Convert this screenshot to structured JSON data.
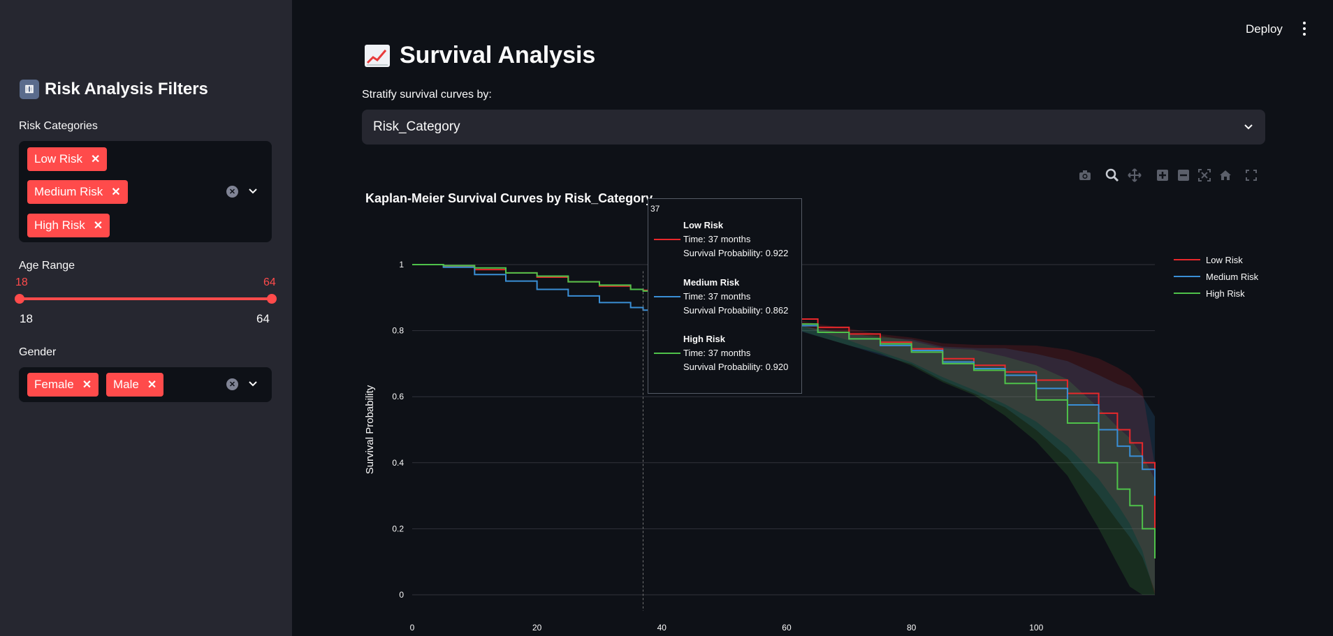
{
  "sidebar": {
    "title": "Risk Analysis Filters",
    "risk_label": "Risk Categories",
    "risk_tags": [
      "Low Risk",
      "Medium Risk",
      "High Risk"
    ],
    "age_label": "Age Range",
    "age_low": "18",
    "age_high": "64",
    "age_min": "18",
    "age_max": "64",
    "gender_label": "Gender",
    "gender_tags": [
      "Female",
      "Male"
    ]
  },
  "header": {
    "deploy": "Deploy"
  },
  "main": {
    "title": "Survival Analysis",
    "strat_label": "Stratify survival curves by:",
    "strat_value": "Risk_Category"
  },
  "colors": {
    "accent": "#ff4b4b",
    "low": "#e8282b",
    "medium": "#3a8fd6",
    "high": "#4fc24a"
  },
  "tooltip": {
    "x": "37",
    "entries": [
      {
        "name": "Low Risk",
        "time": "Time: 37 months",
        "prob": "Survival Probability: 0.922"
      },
      {
        "name": "Medium Risk",
        "time": "Time: 37 months",
        "prob": "Survival Probability: 0.862"
      },
      {
        "name": "High Risk",
        "time": "Time: 37 months",
        "prob": "Survival Probability: 0.920"
      }
    ]
  },
  "chart_data": {
    "type": "line",
    "title": "Kaplan-Meier Survival Curves by Risk_Category",
    "xlabel": "",
    "ylabel": "Survival Probability",
    "xlim": [
      0,
      119
    ],
    "ylim": [
      0,
      1.05
    ],
    "xticks": [
      "0",
      "20",
      "40",
      "60",
      "80",
      "100"
    ],
    "yticks": [
      "0",
      "0.2",
      "0.4",
      "0.6",
      "0.8",
      "1"
    ],
    "grid": true,
    "legend": "top-right",
    "hover_x": 37,
    "series": [
      {
        "name": "Low Risk",
        "color": "#e8282b",
        "x": [
          0,
          5,
          10,
          15,
          20,
          25,
          30,
          35,
          37,
          45,
          50,
          55,
          60,
          65,
          70,
          75,
          80,
          85,
          90,
          95,
          100,
          105,
          110,
          113,
          115,
          117,
          119
        ],
        "y": [
          1.0,
          0.995,
          0.985,
          0.975,
          0.962,
          0.948,
          0.935,
          0.925,
          0.922,
          0.895,
          0.875,
          0.855,
          0.835,
          0.81,
          0.79,
          0.765,
          0.745,
          0.715,
          0.695,
          0.675,
          0.65,
          0.61,
          0.55,
          0.5,
          0.46,
          0.4,
          0.15
        ]
      },
      {
        "name": "Medium Risk",
        "color": "#3a8fd6",
        "x": [
          0,
          5,
          10,
          15,
          20,
          25,
          30,
          35,
          37,
          45,
          50,
          55,
          60,
          65,
          70,
          75,
          80,
          85,
          90,
          95,
          100,
          105,
          110,
          113,
          115,
          117,
          119
        ],
        "y": [
          1.0,
          0.992,
          0.97,
          0.95,
          0.925,
          0.905,
          0.885,
          0.87,
          0.862,
          0.85,
          0.84,
          0.83,
          0.815,
          0.795,
          0.775,
          0.755,
          0.74,
          0.705,
          0.685,
          0.665,
          0.625,
          0.575,
          0.5,
          0.45,
          0.42,
          0.38,
          0.3
        ]
      },
      {
        "name": "High Risk",
        "color": "#4fc24a",
        "x": [
          0,
          5,
          10,
          15,
          20,
          25,
          30,
          35,
          37,
          45,
          50,
          55,
          60,
          65,
          70,
          75,
          80,
          85,
          90,
          95,
          100,
          105,
          110,
          113,
          115,
          117,
          119
        ],
        "y": [
          1.0,
          0.997,
          0.99,
          0.975,
          0.965,
          0.948,
          0.938,
          0.925,
          0.92,
          0.88,
          0.855,
          0.84,
          0.82,
          0.795,
          0.775,
          0.76,
          0.735,
          0.7,
          0.68,
          0.64,
          0.59,
          0.52,
          0.4,
          0.32,
          0.27,
          0.2,
          0.11
        ]
      }
    ]
  }
}
